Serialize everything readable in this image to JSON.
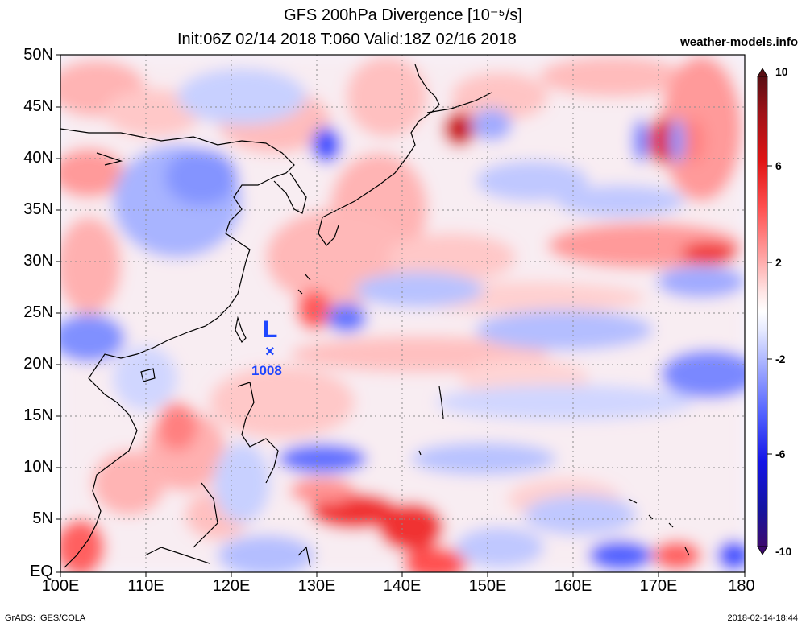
{
  "header": {
    "title": "GFS 200hPa Divergence [10⁻⁵/s]",
    "subtitle": "Init:06Z 02/14 2018 T:060 Valid:18Z 02/16 2018",
    "brand": "weather-models.info"
  },
  "footer": {
    "credit": "GrADS: IGES/COLA",
    "timestamp": "2018-02-14-18:44"
  },
  "map": {
    "lat_labels": [
      "50N",
      "45N",
      "40N",
      "35N",
      "30N",
      "25N",
      "20N",
      "15N",
      "10N",
      "5N",
      "EQ"
    ],
    "lon_labels": [
      "100E",
      "110E",
      "120E",
      "130E",
      "140E",
      "150E",
      "160E",
      "170E",
      "180"
    ],
    "pressure_system": {
      "symbol": "L",
      "marker": "×",
      "pressure": "1008"
    }
  },
  "colorbar": {
    "labels": [
      "10",
      "6",
      "2",
      "-2",
      "-6",
      "-10"
    ],
    "colors": [
      "#5a0f14",
      "#a01218",
      "#e01414",
      "#ff3c3c",
      "#ff7878",
      "#ffb4b4",
      "#ffe0e0",
      "#ffffff",
      "#e0e6ff",
      "#b4beff",
      "#7882ff",
      "#3c46ff",
      "#1414e6",
      "#1414a0",
      "#3c0a6e"
    ]
  },
  "colors": {
    "positive": "#e61414",
    "negative": "#1e3cf0",
    "grid": "#808080",
    "low_symbol": "#1e46ff"
  }
}
